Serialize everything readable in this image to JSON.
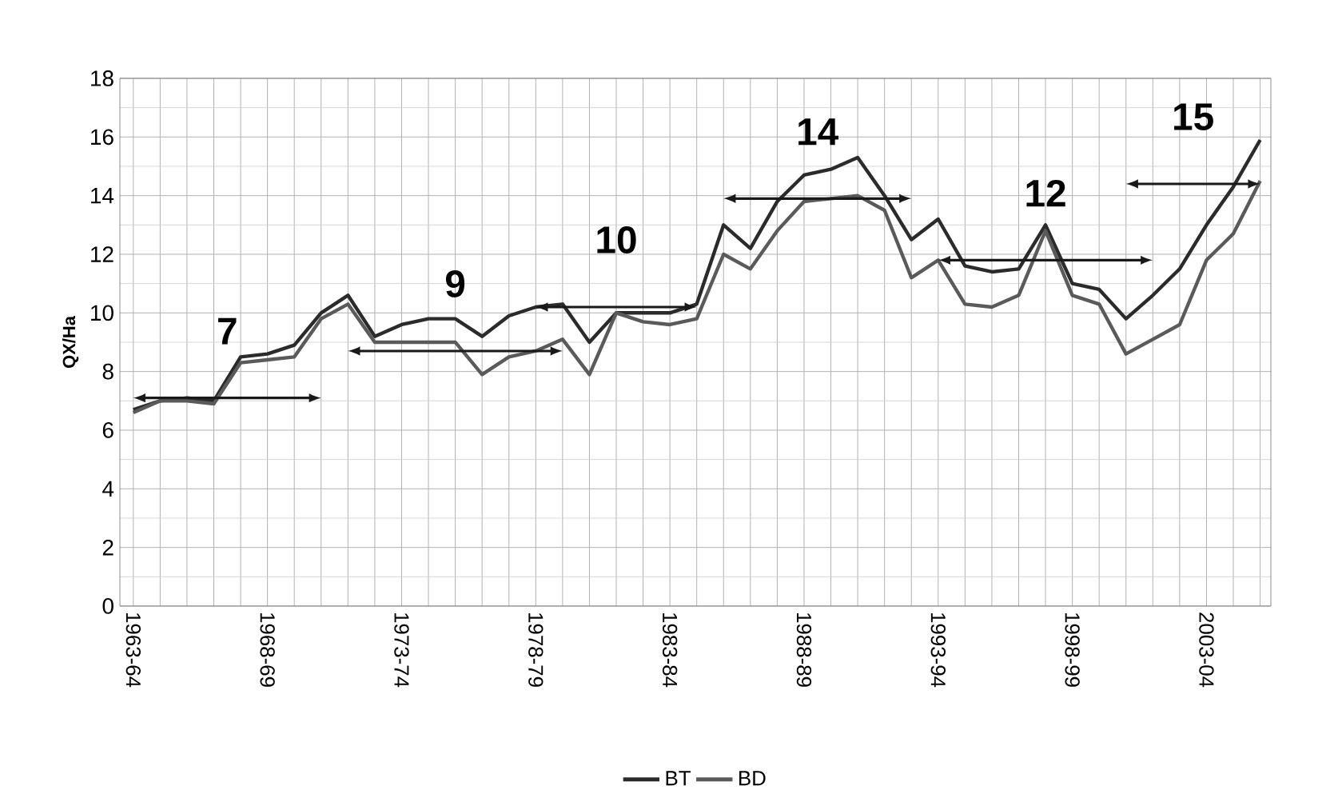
{
  "chart_data": {
    "type": "line",
    "ylabel": "QX/Ha",
    "categories": [
      "1963-64",
      null,
      null,
      null,
      null,
      "1968-69",
      null,
      null,
      null,
      null,
      "1973-74",
      null,
      null,
      null,
      null,
      "1978-79",
      null,
      null,
      null,
      null,
      "1983-84",
      null,
      null,
      null,
      null,
      "1988-89",
      null,
      null,
      null,
      null,
      "1993-94",
      null,
      null,
      null,
      null,
      "1998-99",
      null,
      null,
      null,
      null,
      "2003-04",
      null,
      null
    ],
    "series": [
      {
        "name": "BT",
        "color": "#2b2b2b",
        "values": [
          6.7,
          7.0,
          7.1,
          7.0,
          8.5,
          8.6,
          8.9,
          10.0,
          10.6,
          9.2,
          9.6,
          9.8,
          9.8,
          9.2,
          9.9,
          10.2,
          10.3,
          9.0,
          10.0,
          10.0,
          10.0,
          10.3,
          13.0,
          12.2,
          13.8,
          14.7,
          14.9,
          15.3,
          14.0,
          12.5,
          13.2,
          11.6,
          11.4,
          11.5,
          13.0,
          11.0,
          10.8,
          9.8,
          10.6,
          11.5,
          13.0,
          14.3,
          15.9
        ]
      },
      {
        "name": "BD",
        "color": "#5a5a5a",
        "values": [
          6.6,
          7.0,
          7.0,
          6.9,
          8.3,
          8.4,
          8.5,
          9.8,
          10.3,
          9.0,
          9.0,
          9.0,
          9.0,
          7.9,
          8.5,
          8.7,
          9.1,
          7.9,
          10.0,
          9.7,
          9.6,
          9.8,
          12.0,
          11.5,
          12.8,
          13.8,
          13.9,
          14.0,
          13.5,
          11.2,
          11.8,
          10.3,
          10.2,
          10.6,
          12.8,
          10.6,
          10.3,
          8.6,
          9.1,
          9.6,
          11.8,
          12.7,
          14.5
        ]
      }
    ],
    "annotations": [
      "7",
      "9",
      "10",
      "14",
      "12",
      "15"
    ],
    "ylim": [
      0,
      18
    ],
    "yticks": [
      0,
      2,
      4,
      6,
      8,
      10,
      12,
      14,
      16,
      18
    ],
    "grid": true,
    "legend": "bottom",
    "marker": "none",
    "line_style": "solid"
  }
}
